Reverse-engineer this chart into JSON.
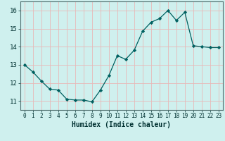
{
  "x": [
    0,
    1,
    2,
    3,
    4,
    5,
    6,
    7,
    8,
    9,
    10,
    11,
    12,
    13,
    14,
    15,
    16,
    17,
    18,
    19,
    20,
    21,
    22,
    23
  ],
  "y": [
    13.0,
    12.6,
    12.1,
    11.65,
    11.6,
    11.1,
    11.05,
    11.05,
    10.95,
    11.6,
    12.4,
    13.5,
    13.3,
    13.8,
    14.85,
    15.35,
    15.55,
    16.0,
    15.45,
    15.9,
    14.05,
    14.0,
    13.95,
    13.95
  ],
  "line_color": "#006060",
  "marker": "D",
  "marker_size": 2.2,
  "bg_color": "#cff0ee",
  "grid_color": "#e8b8b8",
  "xlabel": "Humidex (Indice chaleur)",
  "xlim": [
    -0.5,
    23.5
  ],
  "ylim": [
    10.5,
    16.5
  ],
  "yticks": [
    11,
    12,
    13,
    14,
    15,
    16
  ],
  "xticks": [
    0,
    1,
    2,
    3,
    4,
    5,
    6,
    7,
    8,
    9,
    10,
    11,
    12,
    13,
    14,
    15,
    16,
    17,
    18,
    19,
    20,
    21,
    22,
    23
  ],
  "tick_fontsize": 5.5,
  "xlabel_fontsize": 7.0,
  "ylabel_fontsize": 7.0,
  "spine_color": "#507070"
}
